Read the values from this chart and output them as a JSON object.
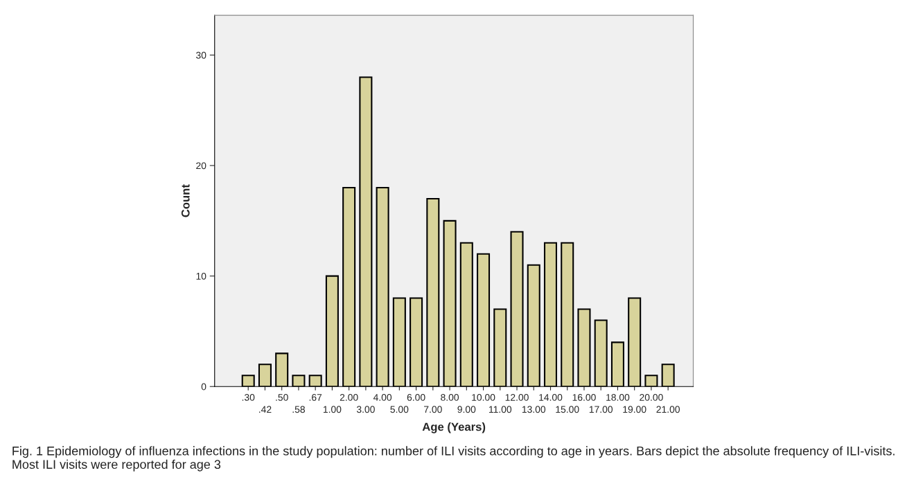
{
  "chart_data": {
    "type": "bar",
    "xlabel": "Age (Years)",
    "ylabel": "Count",
    "categories": [
      ".30",
      ".42",
      ".50",
      ".58",
      ".67",
      "1.00",
      "2.00",
      "3.00",
      "4.00",
      "5.00",
      "6.00",
      "7.00",
      "8.00",
      "9.00",
      "10.00",
      "11.00",
      "12.00",
      "13.00",
      "14.00",
      "15.00",
      "16.00",
      "17.00",
      "18.00",
      "19.00",
      "20.00",
      "21.00"
    ],
    "values": [
      1,
      2,
      3,
      1,
      1,
      10,
      18,
      28,
      18,
      8,
      8,
      17,
      15,
      13,
      12,
      7,
      14,
      11,
      13,
      13,
      7,
      6,
      4,
      8,
      1,
      2
    ],
    "color": "#d8d39b",
    "ylim": [
      0,
      33.6
    ],
    "yticks": [
      0,
      10,
      20,
      30
    ],
    "grid": false,
    "annotations": [
      "Fig. 1 Epidemiology of influenza infections in the study population: number of ILI visits according to age in years. Bars depict the absolute frequency of ILI-visits. Most ILI visits were reported for age 3"
    ]
  }
}
